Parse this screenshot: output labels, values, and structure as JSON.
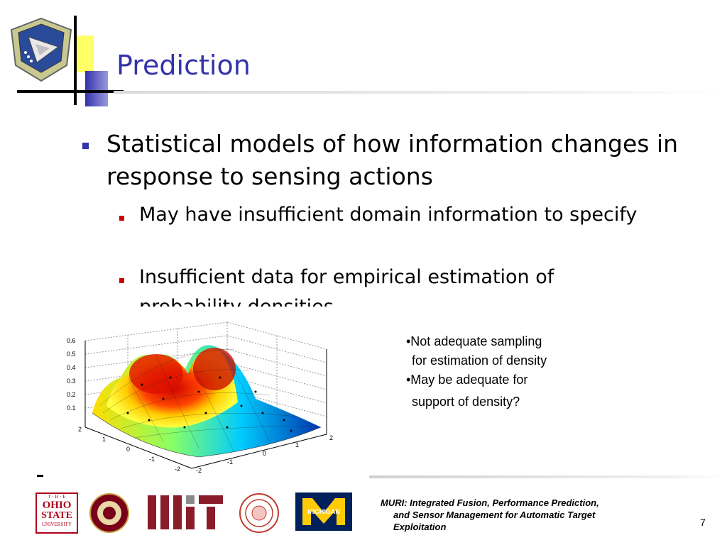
{
  "slide": {
    "title": "Prediction",
    "bullet_main": "Statistical models of how information changes in response to sensing actions",
    "sub_bullets": [
      "May have insufficient domain information to specify",
      "Insufficient data for empirical estimation of probability densities"
    ],
    "notes": [
      "•Not adequate sampling",
      "for estimation of density",
      "•May be adequate for",
      "support of density?"
    ],
    "page_number": "7"
  },
  "footer": {
    "line1": "MURI: Integrated Fusion, Performance Prediction,",
    "line2": "and Sensor Management for Automatic Target",
    "line3": "Exploitation",
    "logos": [
      "The Ohio State University",
      "Florida State University 1857",
      "MIT",
      "Cornell University seal",
      "Michigan"
    ],
    "logo_texts": {
      "osu_top": "T · H · E",
      "osu_main1": "OHIO",
      "osu_main2": "STATE",
      "osu_bottom": "UNIVERSITY",
      "michigan": "MICHIGAN"
    }
  },
  "header_logo": "AIR FORCE RESEARCH LABORATORY",
  "chart_data": {
    "type": "surface3d",
    "z_ticks": [
      "0.6",
      "0.5",
      "0.4",
      "0.3",
      "0.2",
      "0.1"
    ],
    "x_ticks": [
      "2",
      "1",
      "0",
      "-1",
      "-2"
    ],
    "y_ticks": [
      "-2",
      "-1",
      "0",
      "1",
      "2"
    ],
    "zlim": [
      0,
      0.6
    ],
    "colors": [
      "#0000aa",
      "#00ccff",
      "#ffff00",
      "#ff0000",
      "#aa0000"
    ]
  }
}
